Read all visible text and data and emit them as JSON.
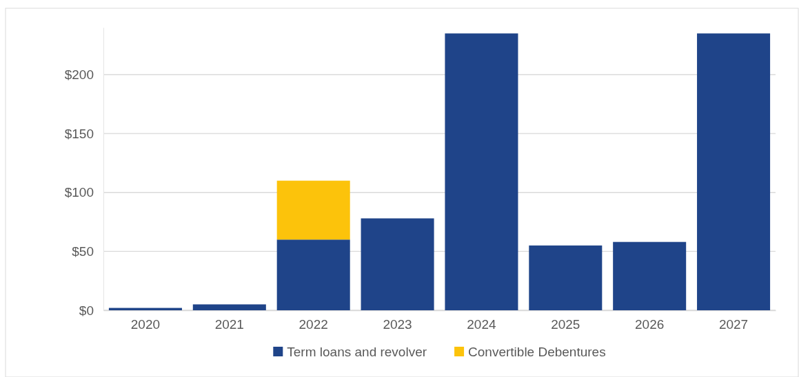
{
  "chart_data": {
    "type": "bar",
    "stacked": true,
    "categories": [
      "2020",
      "2021",
      "2022",
      "2023",
      "2024",
      "2025",
      "2026",
      "2027"
    ],
    "series": [
      {
        "name": "Term loans and revolver",
        "color": "#1f4489",
        "values": [
          2,
          5,
          60,
          78,
          235,
          55,
          58,
          235
        ]
      },
      {
        "name": "Convertible Debentures",
        "color": "#fcc30b",
        "values": [
          null,
          null,
          50,
          null,
          null,
          null,
          null,
          null
        ]
      }
    ],
    "ylim": [
      0,
      240
    ],
    "yticks": [
      {
        "value": 0,
        "label": "$0"
      },
      {
        "value": 50,
        "label": "$50"
      },
      {
        "value": 100,
        "label": "$100"
      },
      {
        "value": 150,
        "label": "$150"
      },
      {
        "value": 200,
        "label": "$200"
      }
    ],
    "grid": "y",
    "legend": "bottom"
  }
}
